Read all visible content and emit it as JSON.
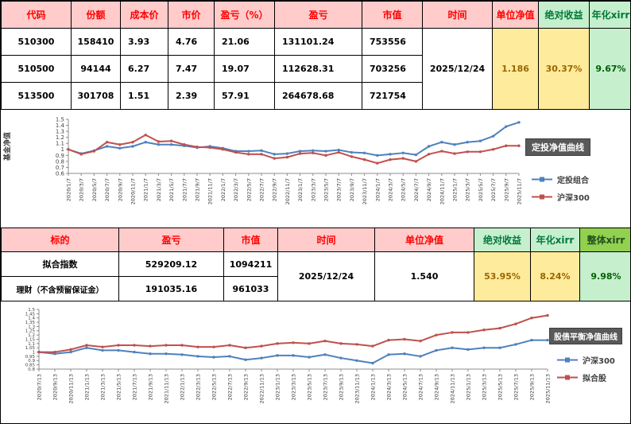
{
  "table1": {
    "headers": [
      "代码",
      "份额",
      "成本价",
      "市价",
      "盈亏（%）",
      "盈亏",
      "市值",
      "时间",
      "单位净值",
      "绝对收益",
      "年化xirr"
    ],
    "rows": [
      [
        "510300",
        "158410",
        "3.93",
        "4.76",
        "21.06",
        "131101.24",
        "753556"
      ],
      [
        "510500",
        "94144",
        "6.27",
        "7.47",
        "19.07",
        "112628.31",
        "703256"
      ],
      [
        "513500",
        "301708",
        "1.51",
        "2.39",
        "57.91",
        "264678.68",
        "721754"
      ]
    ],
    "time": "2025/12/24",
    "unit_nav": "1.186",
    "absolute_return": "30.37%",
    "annualized_xirr": "9.67%"
  },
  "table2": {
    "headers": [
      "标的",
      "盈亏",
      "市值",
      "时间",
      "单位净值",
      "绝对收益",
      "年化xirr",
      "整体xirr"
    ],
    "rows": [
      [
        "拟合指数",
        "529209.12",
        "1094211"
      ],
      [
        "理财（不含预留保证金）",
        "191035.16",
        "961033"
      ]
    ],
    "time": "2025/12/24",
    "unit_nav": "1.540",
    "absolute_return": "53.95%",
    "annualized_xirr": "8.24%",
    "overall_xirr": "9.98%"
  },
  "chart_data": [
    {
      "type": "line",
      "title": "定投净值曲线",
      "ylabel": "基金净值",
      "ylim": [
        0.6,
        1.5
      ],
      "grid": false,
      "legend_position": "right",
      "x": [
        "2020/1/7",
        "2020/3/7",
        "2020/5/7",
        "2020/7/7",
        "2020/9/7",
        "2020/11/7",
        "2021/1/7",
        "2021/3/7",
        "2021/5/7",
        "2021/7/7",
        "2021/9/7",
        "2021/11/7",
        "2022/1/7",
        "2022/3/7",
        "2022/5/7",
        "2022/7/7",
        "2022/9/7",
        "2022/11/7",
        "2023/1/7",
        "2023/3/7",
        "2023/5/7",
        "2023/7/7",
        "2023/9/7",
        "2023/11/7",
        "2024/1/7",
        "2024/3/7",
        "2024/5/7",
        "2024/7/7",
        "2024/9/7",
        "2024/11/7",
        "2025/1/7",
        "2025/3/7",
        "2025/5/7",
        "2025/7/7",
        "2025/9/7",
        "2025/11/7"
      ],
      "series": [
        {
          "name": "定投组合",
          "color": "#4F81BD",
          "values": [
            1.0,
            0.93,
            0.98,
            1.05,
            1.02,
            1.05,
            1.12,
            1.08,
            1.08,
            1.06,
            1.03,
            1.05,
            1.02,
            0.97,
            0.97,
            0.98,
            0.92,
            0.93,
            0.97,
            0.98,
            0.97,
            0.99,
            0.95,
            0.94,
            0.9,
            0.92,
            0.94,
            0.91,
            1.05,
            1.12,
            1.08,
            1.12,
            1.14,
            1.22,
            1.38,
            1.45
          ]
        },
        {
          "name": "沪深300",
          "color": "#C0504D",
          "values": [
            1.0,
            0.92,
            0.97,
            1.12,
            1.08,
            1.12,
            1.24,
            1.13,
            1.14,
            1.08,
            1.04,
            1.03,
            1.0,
            0.95,
            0.92,
            0.92,
            0.85,
            0.87,
            0.93,
            0.94,
            0.9,
            0.95,
            0.88,
            0.83,
            0.77,
            0.83,
            0.85,
            0.8,
            0.92,
            0.97,
            0.93,
            0.96,
            0.96,
            1.0,
            1.06,
            1.06
          ]
        }
      ]
    },
    {
      "type": "line",
      "title": "股债平衡净值曲线",
      "ylabel": "",
      "ylim": [
        0.8,
        1.5
      ],
      "grid": false,
      "legend_position": "right",
      "x": [
        "2020/7/13",
        "2020/9/13",
        "2020/11/13",
        "2021/1/13",
        "2021/3/13",
        "2021/5/13",
        "2021/7/13",
        "2021/9/13",
        "2021/11/13",
        "2022/1/13",
        "2022/3/13",
        "2022/5/13",
        "2022/7/13",
        "2022/9/13",
        "2022/11/13",
        "2023/1/13",
        "2023/3/13",
        "2023/5/13",
        "2023/7/13",
        "2023/9/13",
        "2023/11/13",
        "2024/1/13",
        "2024/3/13",
        "2024/5/13",
        "2024/7/13",
        "2024/9/13",
        "2024/11/13",
        "2025/1/13",
        "2025/3/13",
        "2025/5/13",
        "2025/7/13",
        "2025/9/13",
        "2025/11/13"
      ],
      "series": [
        {
          "name": "沪深300",
          "color": "#4F81BD",
          "values": [
            1.0,
            0.98,
            1.0,
            1.05,
            1.02,
            1.02,
            1.0,
            0.98,
            0.98,
            0.97,
            0.95,
            0.94,
            0.95,
            0.91,
            0.93,
            0.96,
            0.96,
            0.94,
            0.97,
            0.93,
            0.9,
            0.87,
            0.97,
            0.98,
            0.95,
            1.02,
            1.05,
            1.03,
            1.05,
            1.05,
            1.09,
            1.14,
            1.14
          ]
        },
        {
          "name": "拟合股",
          "color": "#C0504D",
          "values": [
            1.0,
            1.0,
            1.03,
            1.08,
            1.06,
            1.08,
            1.08,
            1.07,
            1.08,
            1.08,
            1.06,
            1.06,
            1.08,
            1.05,
            1.07,
            1.1,
            1.11,
            1.1,
            1.13,
            1.1,
            1.09,
            1.07,
            1.14,
            1.15,
            1.13,
            1.2,
            1.23,
            1.23,
            1.26,
            1.28,
            1.33,
            1.4,
            1.43
          ]
        }
      ]
    }
  ]
}
